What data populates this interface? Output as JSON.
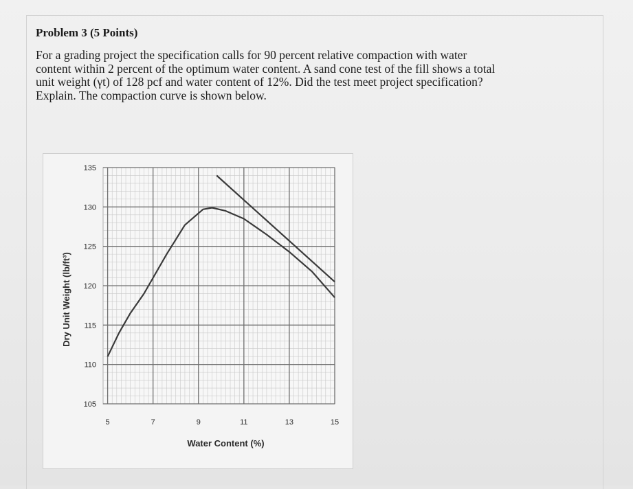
{
  "problem": {
    "title": "Problem 3 (5 Points)",
    "lines": [
      "For a grading project the specification calls for 90 percent relative compaction with water",
      "content within 2 percent of the optimum water content.  A sand cone test of the fill shows a total",
      "unit weight (γt) of 128  pcf and  water content of 12%.  Did the test meet project specification?",
      "Explain. The compaction curve is shown below."
    ]
  },
  "chart_data": {
    "type": "line",
    "xlabel": "Water Content (%)",
    "ylabel": "Dry Unit Weight (lb/ft³)",
    "xlim": [
      4.8,
      15
    ],
    "ylim": [
      105,
      135
    ],
    "xticks": [
      5,
      7,
      9,
      11,
      13,
      15
    ],
    "yticks": [
      135,
      130,
      125,
      120,
      115,
      110,
      105
    ],
    "grid": true,
    "series": [
      {
        "points": [
          [
            5,
            111
          ],
          [
            5.5,
            114
          ],
          [
            6,
            116.5
          ],
          [
            6.6,
            119
          ],
          [
            7,
            121
          ],
          [
            7.6,
            124
          ],
          [
            8.4,
            127.7
          ],
          [
            9.2,
            129.7
          ],
          [
            9.6,
            129.9
          ],
          [
            10.2,
            129.5
          ],
          [
            11,
            128.5
          ],
          [
            12,
            126.5
          ],
          [
            13,
            124.3
          ],
          [
            14,
            121.8
          ],
          [
            15,
            118.5
          ]
        ]
      },
      {
        "points": [
          [
            9.8,
            134
          ],
          [
            15,
            120.5
          ]
        ]
      }
    ]
  }
}
